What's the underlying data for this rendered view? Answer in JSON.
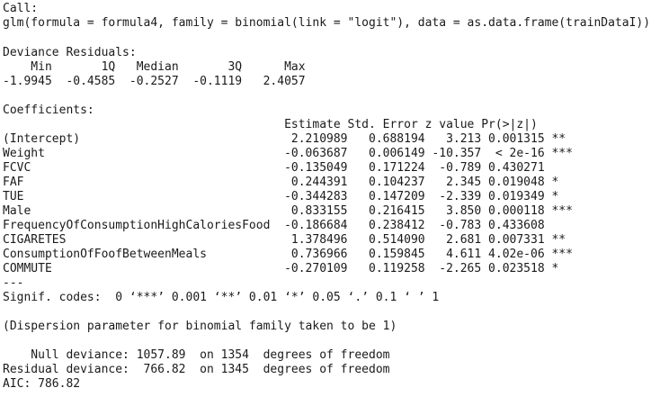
{
  "console": {
    "call_header": "Call:",
    "call": "glm(formula = formula4, family = binomial(link = \"logit\"), data = as.data.frame(trainDataI))",
    "residuals_header": "Deviance Residuals:",
    "residuals_labels": "    Min       1Q   Median       3Q      Max  ",
    "residuals_values": "-1.9945  -0.4585  -0.2527  -0.1119   2.4057  ",
    "coefficients_header": "Coefficients:",
    "coef_columns": "                                        Estimate Std. Error z value Pr(>|z|)    ",
    "coefficients": [
      "(Intercept)                              2.210989   0.688194   3.213 0.001315 ** ",
      "Weight                                  -0.063687   0.006149 -10.357  < 2e-16 ***",
      "FCVC                                    -0.135049   0.171224  -0.789 0.430271    ",
      "FAF                                      0.244391   0.104237   2.345 0.019048 *  ",
      "TUE                                     -0.344283   0.147209  -2.339 0.019349 *  ",
      "Male                                     0.833155   0.216415   3.850 0.000118 ***",
      "FrequencyOfConsumptionHighCaloriesFood  -0.186684   0.238412  -0.783 0.433608    ",
      "CIGARETES                                1.378496   0.514090   2.681 0.007331 ** ",
      "ConsumptionOfFoofBetweenMeals            0.736966   0.159845   4.611 4.02e-06 ***",
      "COMMUTE                                 -0.270109   0.119258  -2.265 0.023518 *  "
    ],
    "separator": "---",
    "signif_codes": "Signif. codes:  0 ‘***’ 0.001 ‘**’ 0.01 ‘*’ 0.05 ‘.’ 0.1 ‘ ’ 1",
    "dispersion": "(Dispersion parameter for binomial family taken to be 1)",
    "null_deviance": "    Null deviance: 1057.89  on 1354  degrees of freedom",
    "residual_deviance": "Residual deviance:  766.82  on 1345  degrees of freedom",
    "aic": "AIC: 786.82"
  }
}
